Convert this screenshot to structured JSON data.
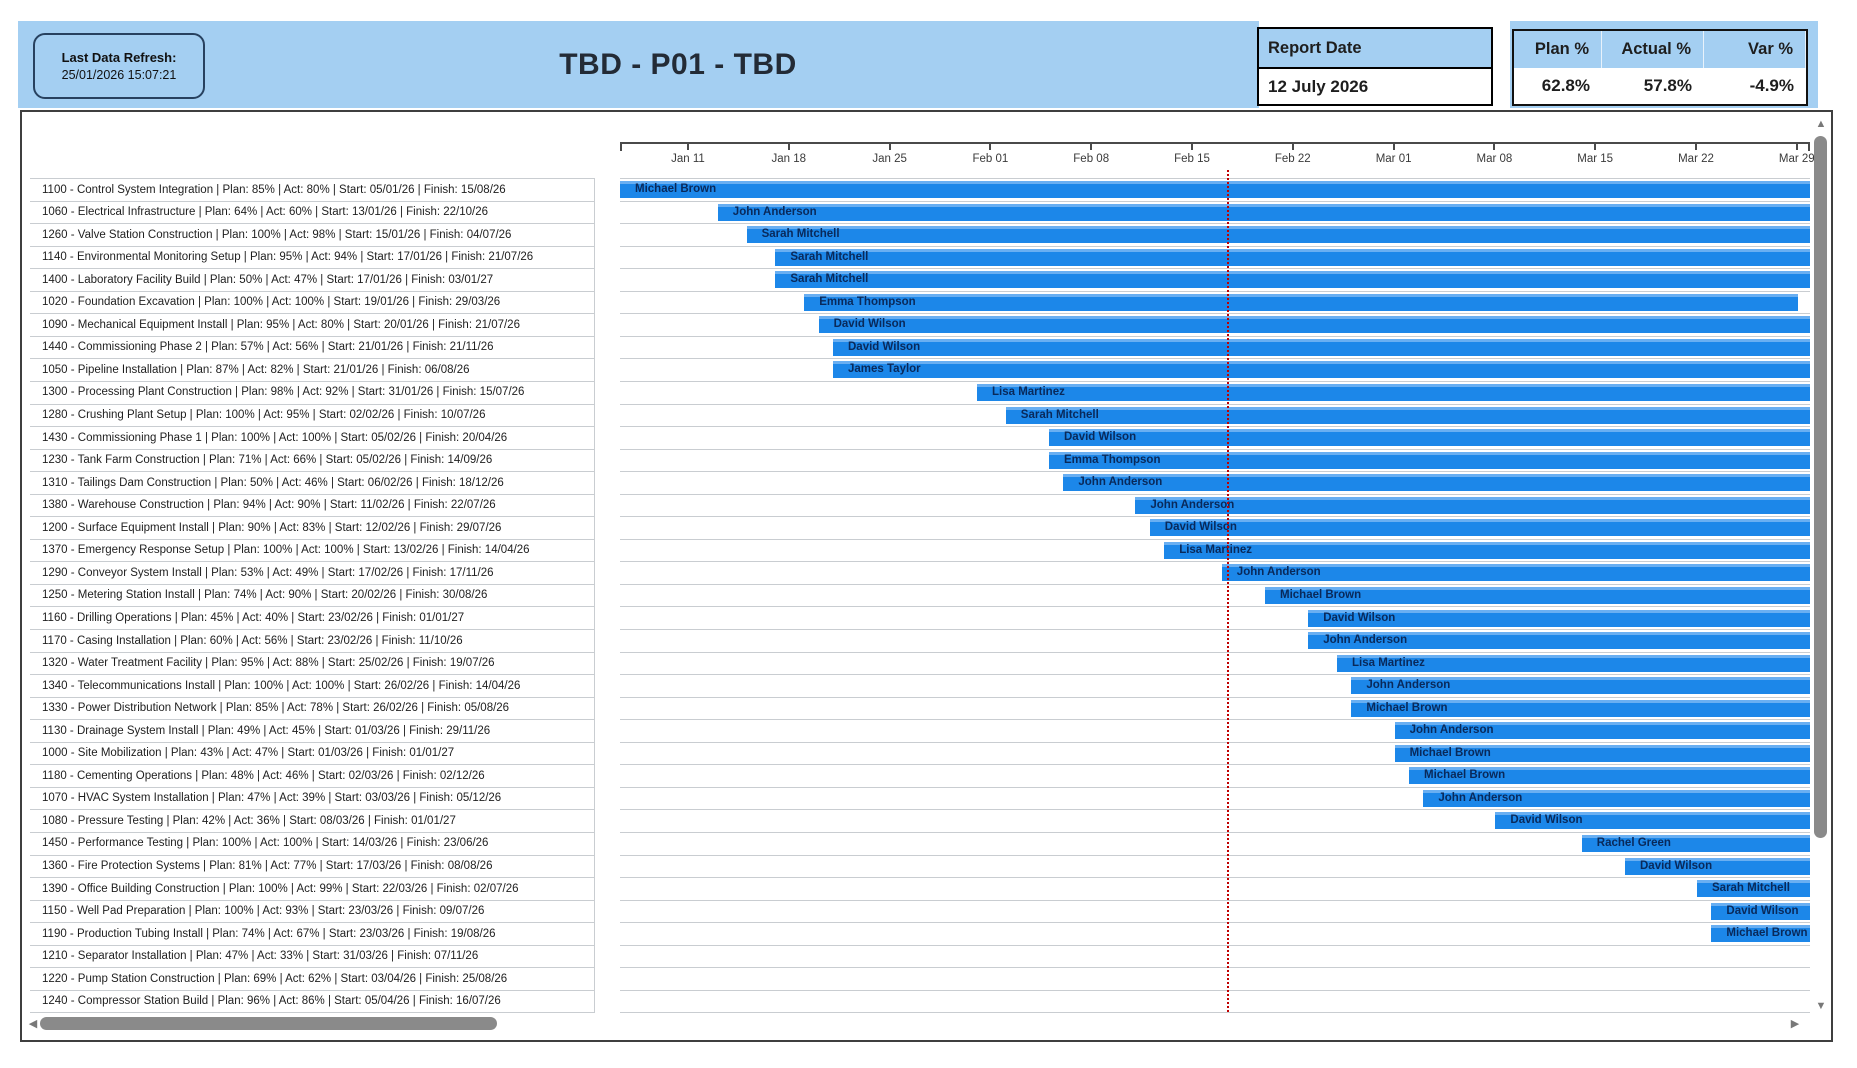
{
  "header": {
    "refresh_label": "Last Data Refresh:",
    "refresh_value": "25/01/2026 15:07:21",
    "title": "TBD - P01 - TBD",
    "report_date": {
      "label": "Report Date",
      "value": "12 July 2026"
    },
    "kpi": {
      "columns": [
        "Plan %",
        "Actual %",
        "Var %"
      ],
      "values": [
        "62.8%",
        "57.8%",
        "-4.9%"
      ]
    }
  },
  "icons": {
    "up_arrow": "▲",
    "down_arrow": "▼",
    "left_arrow": "◀",
    "right_arrow": "▶"
  },
  "colors": {
    "band": "#A4CFF2",
    "bar": "#1C87E9",
    "bar_highlight": "#69AFF2",
    "bar_text": "#09295A",
    "status_line": "#C00000",
    "grid": "#C9CDD1"
  },
  "timeline": {
    "tick_labels": [
      "Jan 11",
      "Jan 18",
      "Jan 25",
      "Feb 01",
      "Feb 08",
      "Feb 15",
      "Feb 22",
      "Mar 01",
      "Mar 08",
      "Mar 15",
      "Mar 22",
      "Mar 29"
    ]
  },
  "chart_data": {
    "type": "gantt",
    "label_format": "{code} - {name} | Plan: {plan} | Act: {act} | Start: {start} | Finish: {finish}",
    "tasks": [
      {
        "code": "1100",
        "name": "Control System Integration",
        "plan": "85%",
        "act": "80%",
        "start": "05/01/26",
        "finish": "15/08/26",
        "assignee": "Michael Brown"
      },
      {
        "code": "1060",
        "name": "Electrical Infrastructure",
        "plan": "64%",
        "act": "60%",
        "start": "13/01/26",
        "finish": "22/10/26",
        "assignee": "John Anderson"
      },
      {
        "code": "1260",
        "name": "Valve Station Construction",
        "plan": "100%",
        "act": "98%",
        "start": "15/01/26",
        "finish": "04/07/26",
        "assignee": "Sarah Mitchell"
      },
      {
        "code": "1140",
        "name": "Environmental Monitoring Setup",
        "plan": "95%",
        "act": "94%",
        "start": "17/01/26",
        "finish": "21/07/26",
        "assignee": "Sarah Mitchell"
      },
      {
        "code": "1400",
        "name": "Laboratory Facility Build",
        "plan": "50%",
        "act": "47%",
        "start": "17/01/26",
        "finish": "03/01/27",
        "assignee": "Sarah Mitchell"
      },
      {
        "code": "1020",
        "name": "Foundation Excavation",
        "plan": "100%",
        "act": "100%",
        "start": "19/01/26",
        "finish": "29/03/26",
        "assignee": "Emma Thompson"
      },
      {
        "code": "1090",
        "name": "Mechanical Equipment Install",
        "plan": "95%",
        "act": "80%",
        "start": "20/01/26",
        "finish": "21/07/26",
        "assignee": "David Wilson"
      },
      {
        "code": "1440",
        "name": "Commissioning Phase 2",
        "plan": "57%",
        "act": "56%",
        "start": "21/01/26",
        "finish": "21/11/26",
        "assignee": "David Wilson"
      },
      {
        "code": "1050",
        "name": "Pipeline Installation",
        "plan": "87%",
        "act": "82%",
        "start": "21/01/26",
        "finish": "06/08/26",
        "assignee": "James Taylor"
      },
      {
        "code": "1300",
        "name": "Processing Plant Construction",
        "plan": "98%",
        "act": "92%",
        "start": "31/01/26",
        "finish": "15/07/26",
        "assignee": "Lisa Martinez"
      },
      {
        "code": "1280",
        "name": "Crushing Plant Setup",
        "plan": "100%",
        "act": "95%",
        "start": "02/02/26",
        "finish": "10/07/26",
        "assignee": "Sarah Mitchell"
      },
      {
        "code": "1430",
        "name": "Commissioning Phase 1",
        "plan": "100%",
        "act": "100%",
        "start": "05/02/26",
        "finish": "20/04/26",
        "assignee": "David Wilson"
      },
      {
        "code": "1230",
        "name": "Tank Farm Construction",
        "plan": "71%",
        "act": "66%",
        "start": "05/02/26",
        "finish": "14/09/26",
        "assignee": "Emma Thompson"
      },
      {
        "code": "1310",
        "name": "Tailings Dam Construction",
        "plan": "50%",
        "act": "46%",
        "start": "06/02/26",
        "finish": "18/12/26",
        "assignee": "John Anderson"
      },
      {
        "code": "1380",
        "name": "Warehouse Construction",
        "plan": "94%",
        "act": "90%",
        "start": "11/02/26",
        "finish": "22/07/26",
        "assignee": "John Anderson"
      },
      {
        "code": "1200",
        "name": "Surface Equipment Install",
        "plan": "90%",
        "act": "83%",
        "start": "12/02/26",
        "finish": "29/07/26",
        "assignee": "David Wilson"
      },
      {
        "code": "1370",
        "name": "Emergency Response Setup",
        "plan": "100%",
        "act": "100%",
        "start": "13/02/26",
        "finish": "14/04/26",
        "assignee": "Lisa Martinez"
      },
      {
        "code": "1290",
        "name": "Conveyor System Install",
        "plan": "53%",
        "act": "49%",
        "start": "17/02/26",
        "finish": "17/11/26",
        "assignee": "John Anderson"
      },
      {
        "code": "1250",
        "name": "Metering Station Install",
        "plan": "74%",
        "act": "90%",
        "start": "20/02/26",
        "finish": "30/08/26",
        "assignee": "Michael Brown"
      },
      {
        "code": "1160",
        "name": "Drilling Operations",
        "plan": "45%",
        "act": "40%",
        "start": "23/02/26",
        "finish": "01/01/27",
        "assignee": "David Wilson"
      },
      {
        "code": "1170",
        "name": "Casing Installation",
        "plan": "60%",
        "act": "56%",
        "start": "23/02/26",
        "finish": "11/10/26",
        "assignee": "John Anderson"
      },
      {
        "code": "1320",
        "name": "Water Treatment Facility",
        "plan": "95%",
        "act": "88%",
        "start": "25/02/26",
        "finish": "19/07/26",
        "assignee": "Lisa Martinez"
      },
      {
        "code": "1340",
        "name": "Telecommunications Install",
        "plan": "100%",
        "act": "100%",
        "start": "26/02/26",
        "finish": "14/04/26",
        "assignee": "John Anderson"
      },
      {
        "code": "1330",
        "name": "Power Distribution Network",
        "plan": "85%",
        "act": "78%",
        "start": "26/02/26",
        "finish": "05/08/26",
        "assignee": "Michael Brown"
      },
      {
        "code": "1130",
        "name": "Drainage System Install",
        "plan": "49%",
        "act": "45%",
        "start": "01/03/26",
        "finish": "29/11/26",
        "assignee": "John Anderson"
      },
      {
        "code": "1000",
        "name": "Site Mobilization",
        "plan": "43%",
        "act": "47%",
        "start": "01/03/26",
        "finish": "01/01/27",
        "assignee": "Michael Brown"
      },
      {
        "code": "1180",
        "name": "Cementing Operations",
        "plan": "48%",
        "act": "46%",
        "start": "02/03/26",
        "finish": "02/12/26",
        "assignee": "Michael Brown"
      },
      {
        "code": "1070",
        "name": "HVAC System Installation",
        "plan": "47%",
        "act": "39%",
        "start": "03/03/26",
        "finish": "05/12/26",
        "assignee": "John Anderson"
      },
      {
        "code": "1080",
        "name": "Pressure Testing",
        "plan": "42%",
        "act": "36%",
        "start": "08/03/26",
        "finish": "01/01/27",
        "assignee": "David Wilson"
      },
      {
        "code": "1450",
        "name": "Performance Testing",
        "plan": "100%",
        "act": "100%",
        "start": "14/03/26",
        "finish": "23/06/26",
        "assignee": "Rachel Green"
      },
      {
        "code": "1360",
        "name": "Fire Protection Systems",
        "plan": "81%",
        "act": "77%",
        "start": "17/03/26",
        "finish": "08/08/26",
        "assignee": "David Wilson"
      },
      {
        "code": "1390",
        "name": "Office Building Construction",
        "plan": "100%",
        "act": "99%",
        "start": "22/03/26",
        "finish": "02/07/26",
        "assignee": "Sarah Mitchell"
      },
      {
        "code": "1150",
        "name": "Well Pad Preparation",
        "plan": "100%",
        "act": "93%",
        "start": "23/03/26",
        "finish": "09/07/26",
        "assignee": "David Wilson"
      },
      {
        "code": "1190",
        "name": "Production Tubing Install",
        "plan": "74%",
        "act": "67%",
        "start": "23/03/26",
        "finish": "19/08/26",
        "assignee": "Michael Brown"
      },
      {
        "code": "1210",
        "name": "Separator Installation",
        "plan": "47%",
        "act": "33%",
        "start": "31/03/26",
        "finish": "07/11/26",
        "assignee": ""
      },
      {
        "code": "1220",
        "name": "Pump Station Construction",
        "plan": "69%",
        "act": "62%",
        "start": "03/04/26",
        "finish": "25/08/26",
        "assignee": ""
      },
      {
        "code": "1240",
        "name": "Compressor Station Build",
        "plan": "96%",
        "act": "86%",
        "start": "05/04/26",
        "finish": "16/07/26",
        "assignee": ""
      }
    ]
  }
}
